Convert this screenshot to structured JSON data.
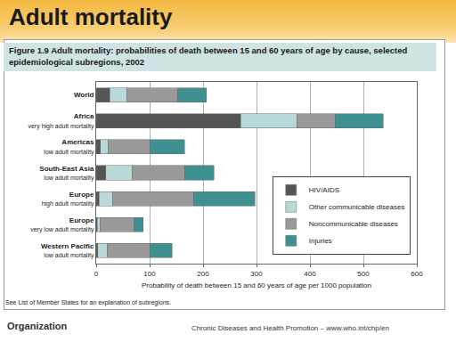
{
  "slide": {
    "title": "Adult mortality",
    "note": "See List of Member States for an explanation of subregions.",
    "logo": "Organization",
    "footer": "Chronic Diseases and Health Promotion – www.who.int/chp/en"
  },
  "chart_data": {
    "type": "bar",
    "title": "Figure 1.9 Adult mortality: probabilities of death between 15 and 60 years of age by cause, selected epidemiological subregions, 2002",
    "orientation": "horizontal",
    "stacked": true,
    "categories": [
      "World",
      "Africa\nvery high adult mortality",
      "Americas\nlow adult mortality",
      "South-East Asia\nlow adult mortality",
      "Europe\nhigh adult mortality",
      "Europe\nvery low adult mortality",
      "Western Pacific\nlow adult mortality"
    ],
    "series": [
      {
        "name": "HIV/AIDS",
        "color": "#555555",
        "values": [
          25,
          270,
          8,
          18,
          5,
          2,
          3
        ]
      },
      {
        "name": "Other communicable diseases",
        "color": "#b9d9d9",
        "values": [
          33,
          105,
          15,
          50,
          25,
          5,
          17
        ]
      },
      {
        "name": "Noncommunicable diseases",
        "color": "#999999",
        "values": [
          95,
          72,
          77,
          97,
          152,
          63,
          80
        ]
      },
      {
        "name": "Injuries",
        "color": "#3f9191",
        "values": [
          53,
          90,
          65,
          55,
          115,
          18,
          42
        ]
      }
    ],
    "xlabel": "Probability of death between 15 and 60 years of age per 1000 population",
    "xlim": [
      0,
      600
    ],
    "xticks": [
      0,
      100,
      200,
      300,
      400,
      500,
      600
    ],
    "grid": true,
    "legend": "lower right"
  }
}
